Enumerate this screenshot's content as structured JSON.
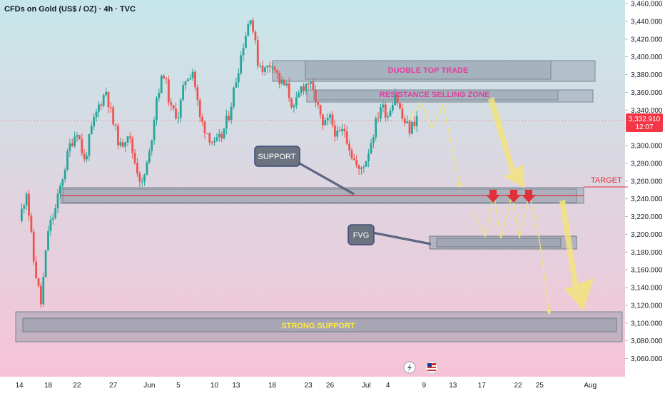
{
  "header": {
    "symbol_line": "CFDs on Gold (US$ / OZ) · 4h · TVC"
  },
  "price_badge": {
    "price": "3,332.910",
    "countdown": "12:07"
  },
  "labels": {
    "double_top": "DUOBLE TOP TRADE",
    "resistance": "RESISTANCE SELLING ZONE",
    "support": "SUPPORT",
    "target": "TARGET",
    "fvg": "FVG",
    "strong_support": "STRONG SUPPORT"
  },
  "colors": {
    "bull": "#26a69a",
    "bear": "#ef5350",
    "target_line": "#e0313a",
    "zone_label": "#e040a0",
    "projection": "#f3e37c",
    "strong_support_label": "#ffeb3b",
    "bg_top": "#c6e7ea",
    "bg_bottom": "#f6c3d6"
  },
  "chart_data": {
    "type": "candlestick",
    "symbol": "CFDs on Gold (US$ / OZ)",
    "timeframe": "4h",
    "source": "TVC",
    "y_axis": {
      "min": 3050,
      "max": 3460,
      "ticks": [
        3460,
        3440,
        3420,
        3400,
        3380,
        3360,
        3340,
        3320,
        3300,
        3280,
        3260,
        3240,
        3220,
        3200,
        3180,
        3160,
        3140,
        3120,
        3100,
        3080,
        3060
      ],
      "tick_labels": [
        "3,460.000",
        "3,440.000",
        "3,420.000",
        "3,400.000",
        "3,380.000",
        "3,360.000",
        "3,340.000",
        "3,320.000",
        "3,300.000",
        "3,280.000",
        "3,260.000",
        "3,240.000",
        "3,220.000",
        "3,200.000",
        "3,180.000",
        "3,160.000",
        "3,140.000",
        "3,120.000",
        "3,100.000",
        "3,080.000",
        "3,060.000"
      ]
    },
    "x_axis": {
      "labels": [
        "14",
        "18",
        "22",
        "27",
        "Jun",
        "5",
        "10",
        "13",
        "18",
        "23",
        "26",
        "Jul",
        "4",
        "9",
        "13",
        "17",
        "22",
        "25",
        "Aug"
      ],
      "label_day_index": [
        0,
        4,
        8,
        13,
        18,
        22,
        27,
        30,
        35,
        40,
        43,
        48,
        51,
        56,
        60,
        64,
        69,
        72,
        79
      ]
    },
    "close_path": [
      [
        0,
        3215
      ],
      [
        1,
        3250
      ],
      [
        2,
        3170
      ],
      [
        3,
        3122
      ],
      [
        4,
        3205
      ],
      [
        5,
        3228
      ],
      [
        6,
        3265
      ],
      [
        7,
        3300
      ],
      [
        8,
        3318
      ],
      [
        9,
        3282
      ],
      [
        10,
        3318
      ],
      [
        11,
        3345
      ],
      [
        12,
        3362
      ],
      [
        13,
        3325
      ],
      [
        14,
        3298
      ],
      [
        15,
        3315
      ],
      [
        16,
        3282
      ],
      [
        17,
        3255
      ],
      [
        18,
        3290
      ],
      [
        19,
        3355
      ],
      [
        20,
        3382
      ],
      [
        21,
        3340
      ],
      [
        22,
        3335
      ],
      [
        23,
        3375
      ],
      [
        24,
        3385
      ],
      [
        25,
        3330
      ],
      [
        26,
        3315
      ],
      [
        27,
        3300
      ],
      [
        28,
        3310
      ],
      [
        29,
        3335
      ],
      [
        30,
        3375
      ],
      [
        31,
        3415
      ],
      [
        32,
        3448
      ],
      [
        33,
        3395
      ],
      [
        34,
        3385
      ],
      [
        35,
        3395
      ],
      [
        36,
        3372
      ],
      [
        37,
        3365
      ],
      [
        38,
        3340
      ],
      [
        39,
        3365
      ],
      [
        40,
        3372
      ],
      [
        41,
        3352
      ],
      [
        42,
        3320
      ],
      [
        43,
        3330
      ],
      [
        44,
        3310
      ],
      [
        45,
        3318
      ],
      [
        46,
        3290
      ],
      [
        47,
        3270
      ],
      [
        48,
        3285
      ],
      [
        49,
        3315
      ],
      [
        50,
        3345
      ],
      [
        51,
        3335
      ],
      [
        52,
        3360
      ],
      [
        53,
        3330
      ],
      [
        54,
        3318
      ],
      [
        55,
        3332
      ]
    ],
    "current_price": 3332.91,
    "zones": [
      {
        "label": "DUOBLE TOP TRADE",
        "from": 3374,
        "to": 3397
      },
      {
        "label": "RESISTANCE SELLING ZONE",
        "from": 3356,
        "to": 3364
      },
      {
        "label": "SUPPORT",
        "from": 3241,
        "to": 3255
      },
      {
        "label": "FVG",
        "from": 3196,
        "to": 3209
      },
      {
        "label": "STRONG SUPPORT",
        "from": 3093,
        "to": 3121
      }
    ],
    "target_level": 3250,
    "annotations": [
      "DUOBLE TOP TRADE",
      "RESISTANCE SELLING ZONE",
      "SUPPORT",
      "TARGET",
      "FVG",
      "STRONG SUPPORT"
    ],
    "grid": false
  }
}
